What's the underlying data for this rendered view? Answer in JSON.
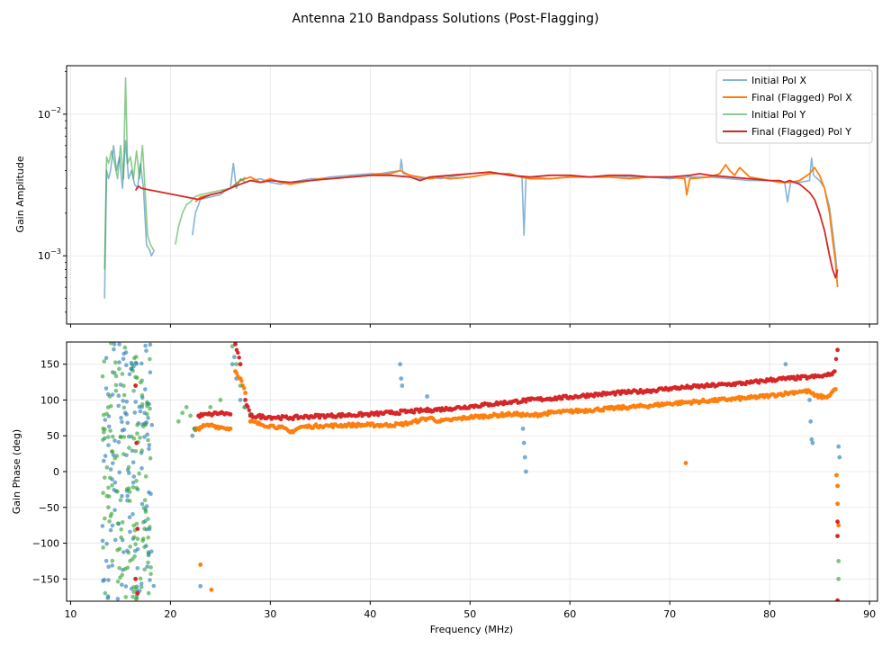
{
  "chart_data": {
    "type": "line",
    "title": "Antenna 210 Bandpass Solutions (Post-Flagging)",
    "xlabel": "Frequency (MHz)",
    "xlim": [
      9.6,
      90.8
    ],
    "x_ticks": [
      10,
      20,
      30,
      40,
      50,
      60,
      70,
      80,
      90
    ],
    "colors": {
      "initial_x": "#1f77b4",
      "final_x": "#ff7f0e",
      "initial_y": "#2ca02c",
      "final_y": "#d62728"
    },
    "amplitude": {
      "ylabel": "Gain Amplitude",
      "scale": "log",
      "ylim": [
        0.00033,
        0.022
      ],
      "y_ticks": [
        {
          "value": 0.001,
          "base": "10",
          "exp": "−3"
        },
        {
          "value": 0.01,
          "base": "10",
          "exp": "−2"
        }
      ],
      "legend": {
        "placement": "top-right",
        "entries": [
          "Initial Pol X",
          "Final (Flagged) Pol X",
          "Initial Pol Y",
          "Final (Flagged) Pol Y"
        ]
      },
      "series": [
        {
          "name": "Initial Pol X",
          "color_key": "initial_x",
          "x": [
            13.4,
            13.6,
            13.8,
            14.0,
            14.3,
            14.6,
            14.9,
            15.2,
            15.5,
            15.8,
            16.1,
            16.4,
            16.7,
            17.0,
            17.3,
            17.6,
            17.9,
            18.1,
            18.4,
            null,
            22.2,
            22.5,
            23,
            24,
            25,
            25.5,
            26,
            26.3,
            26.6,
            27,
            27.5,
            28,
            29,
            30,
            31,
            32,
            33,
            34,
            35,
            36,
            38,
            40,
            41,
            42,
            43,
            43.1,
            43.3,
            44,
            45,
            46,
            47,
            48,
            50,
            52,
            54,
            55.2,
            55.4,
            55.6,
            56,
            58,
            60,
            62,
            64,
            66,
            68,
            70,
            72,
            74,
            76,
            78,
            80,
            81,
            81.5,
            81.8,
            82.1,
            83,
            84,
            84.2,
            84.4,
            85,
            85.5,
            86,
            86.3,
            86.6,
            86.8
          ],
          "y": [
            0.0005,
            0.004,
            0.0035,
            0.004,
            0.006,
            0.004,
            0.005,
            0.003,
            0.0065,
            0.0035,
            0.004,
            0.0032,
            0.003,
            0.0045,
            0.003,
            0.0012,
            0.0011,
            0.001,
            0.0011,
            null,
            0.0014,
            0.002,
            0.0025,
            0.0026,
            0.0027,
            0.0029,
            0.003,
            0.0045,
            0.003,
            0.0035,
            0.0033,
            0.0034,
            0.0035,
            0.0033,
            0.0032,
            0.0033,
            0.0034,
            0.0035,
            0.0035,
            0.0036,
            0.0037,
            0.0038,
            0.0038,
            0.0039,
            0.004,
            0.0048,
            0.0038,
            0.0037,
            0.0035,
            0.0036,
            0.0035,
            0.0036,
            0.0038,
            0.0039,
            0.0037,
            0.0036,
            0.0014,
            0.0035,
            0.0036,
            0.0035,
            0.0036,
            0.0036,
            0.0037,
            0.0036,
            0.0036,
            0.0035,
            0.0036,
            0.0036,
            0.0035,
            0.0034,
            0.0034,
            0.0033,
            0.0033,
            0.0024,
            0.0033,
            0.0033,
            0.0034,
            0.0049,
            0.0037,
            0.0034,
            0.003,
            0.0022,
            0.0015,
            0.001,
            0.0007
          ]
        },
        {
          "name": "Final (Flagged) Pol X",
          "color_key": "final_x",
          "x": [
            22.5,
            23,
            24,
            25,
            26,
            27,
            28,
            29,
            30,
            31,
            32,
            33,
            34,
            35,
            36,
            38,
            40,
            41,
            42,
            43,
            44,
            45,
            46,
            47,
            48,
            50,
            52,
            54,
            55,
            56,
            58,
            60,
            62,
            64,
            66,
            68,
            70,
            71.5,
            71.7,
            72,
            74,
            75,
            75.6,
            76,
            76.5,
            77,
            78,
            79,
            80,
            81,
            82,
            83,
            84,
            84.5,
            85,
            85.5,
            86,
            86.3,
            86.6,
            86.8
          ],
          "y": [
            0.0024,
            0.0026,
            0.0027,
            0.0028,
            0.003,
            0.0034,
            0.0036,
            0.0033,
            0.0035,
            0.0033,
            0.0032,
            0.0033,
            0.0034,
            0.0035,
            0.0035,
            0.0036,
            0.0037,
            0.0038,
            0.0038,
            0.004,
            0.0037,
            0.0036,
            0.0035,
            0.0036,
            0.0035,
            0.0036,
            0.0038,
            0.0038,
            0.0036,
            0.0035,
            0.0035,
            0.0036,
            0.0036,
            0.0036,
            0.0035,
            0.0036,
            0.0036,
            0.0035,
            0.0027,
            0.0035,
            0.0036,
            0.0038,
            0.0044,
            0.004,
            0.0037,
            0.0042,
            0.0036,
            0.0035,
            0.0034,
            0.0033,
            0.0033,
            0.0034,
            0.0038,
            0.0042,
            0.0037,
            0.003,
            0.002,
            0.0013,
            0.0009,
            0.0006
          ]
        },
        {
          "name": "Initial Pol Y",
          "color_key": "initial_y",
          "x": [
            13.4,
            13.6,
            13.8,
            14.1,
            14.4,
            14.7,
            15.0,
            15.3,
            15.5,
            15.7,
            16.0,
            16.3,
            16.6,
            16.9,
            17.2,
            17.4,
            17.7,
            18.0,
            18.3,
            null,
            20.5,
            20.8,
            21.2,
            21.6,
            22.0,
            22.4,
            23,
            24,
            25,
            26,
            27,
            27.5
          ],
          "y": [
            0.0008,
            0.005,
            0.0045,
            0.0055,
            0.0045,
            0.0035,
            0.006,
            0.0035,
            0.018,
            0.0045,
            0.005,
            0.0035,
            0.0055,
            0.0035,
            0.006,
            0.0035,
            0.0014,
            0.0012,
            0.0011,
            null,
            0.0012,
            0.0016,
            0.002,
            0.0023,
            0.0024,
            0.0026,
            0.0027,
            0.0028,
            0.0029,
            0.003,
            0.0034,
            0.0036
          ]
        },
        {
          "name": "Final (Flagged) Pol Y",
          "color_key": "final_y",
          "x": [
            16.5,
            16.8,
            17.1,
            22.8,
            24,
            25,
            26,
            27,
            28,
            29,
            30,
            32,
            34,
            36,
            38,
            40,
            42,
            44,
            45,
            45.5,
            46,
            48,
            50,
            52,
            54,
            56,
            58,
            60,
            62,
            64,
            66,
            68,
            70,
            72,
            73,
            74,
            76,
            78,
            80,
            81,
            81.5,
            82,
            82.5,
            83,
            83.5,
            84,
            84.5,
            85,
            85.5,
            86,
            86.3,
            86.6,
            86.8
          ],
          "y": [
            0.0029,
            0.0031,
            0.003,
            0.0025,
            0.0027,
            0.0028,
            0.003,
            0.0032,
            0.0034,
            0.0033,
            0.0034,
            0.0033,
            0.0034,
            0.0035,
            0.0036,
            0.0037,
            0.0037,
            0.0036,
            0.0034,
            0.0035,
            0.0036,
            0.0037,
            0.0038,
            0.0039,
            0.0037,
            0.0036,
            0.0037,
            0.0037,
            0.0036,
            0.0037,
            0.0037,
            0.0036,
            0.0036,
            0.0037,
            0.0038,
            0.0037,
            0.0036,
            0.0035,
            0.0034,
            0.0034,
            0.0033,
            0.0034,
            0.0033,
            0.0032,
            0.003,
            0.0028,
            0.0025,
            0.002,
            0.0015,
            0.001,
            0.0008,
            0.0007,
            0.0008
          ]
        }
      ]
    },
    "phase": {
      "ylabel": "Gain Phase (deg)",
      "ylim": [
        -181,
        181
      ],
      "y_ticks": [
        -150,
        -100,
        -50,
        0,
        50,
        100,
        150
      ],
      "scatter_low_band": {
        "x_range": [
          13.2,
          18.6
        ],
        "note": "wrapped phase noise across -180..180 for initial Pol X and Pol Y"
      },
      "series": [
        {
          "name": "Initial Pol X",
          "color_key": "initial_x",
          "x": [
            22.2,
            22.4,
            23,
            26.2,
            26.4,
            26.6,
            27,
            27.5,
            28,
            43,
            43.1,
            43.2,
            45.7,
            55.3,
            55.4,
            55.5,
            55.6,
            81.6,
            84,
            84.1,
            84.2,
            84.3,
            86.9,
            87
          ],
          "y": [
            50,
            60,
            -160,
            150,
            160,
            130,
            100,
            90,
            80,
            150,
            130,
            120,
            105,
            60,
            40,
            20,
            0,
            150,
            100,
            70,
            45,
            40,
            35,
            20
          ]
        },
        {
          "name": "Final (Flagged) Pol X",
          "color_key": "final_x",
          "x": [
            22.5,
            23,
            24,
            25,
            26,
            26.5,
            27,
            27.5,
            28,
            29,
            30,
            31,
            32,
            33,
            34,
            35,
            36,
            38,
            40,
            42,
            43,
            44,
            45,
            46,
            47,
            48,
            50,
            52,
            54,
            55,
            56,
            58,
            60,
            62,
            64,
            66,
            68,
            70,
            72,
            74,
            76,
            78,
            80,
            81,
            82,
            83,
            84,
            84.5,
            85,
            85.5,
            86,
            86.3,
            86.6
          ],
          "y": [
            58,
            62,
            65,
            62,
            60,
            140,
            130,
            110,
            70,
            66,
            64,
            62,
            55,
            62,
            63,
            64,
            64,
            65,
            65,
            65,
            66,
            68,
            72,
            75,
            70,
            72,
            76,
            78,
            80,
            80,
            78,
            82,
            84,
            86,
            88,
            90,
            92,
            95,
            97,
            99,
            101,
            103,
            106,
            108,
            110,
            112,
            112,
            106,
            105,
            104,
            106,
            112,
            115
          ],
          "x_extra": [
            23,
            24.1,
            71.6,
            86.7,
            86.8,
            86.8,
            86.9
          ],
          "y_extra": [
            -130,
            -165,
            12,
            -5,
            -20,
            -45,
            -75
          ]
        },
        {
          "name": "Initial Pol Y",
          "color_key": "initial_y",
          "x": [
            20.8,
            21.2,
            21.6,
            22,
            22.4,
            24,
            25,
            26.2,
            26.6,
            27,
            27.4,
            28,
            86.9,
            86.9
          ],
          "y": [
            70,
            82,
            90,
            78,
            60,
            90,
            100,
            175,
            150,
            120,
            90,
            80,
            -125,
            -150
          ]
        },
        {
          "name": "Final (Flagged) Pol Y",
          "color_key": "final_y",
          "x": [
            16.5,
            16.6,
            16.7,
            22.8,
            24,
            25,
            26,
            26.5,
            27,
            27.5,
            28,
            30,
            32,
            34,
            36,
            38,
            40,
            42,
            44,
            46,
            48,
            50,
            52,
            54,
            56,
            58,
            60,
            62,
            64,
            66,
            68,
            70,
            72,
            74,
            76,
            78,
            80,
            82,
            84,
            85,
            86,
            86.5,
            86.8
          ],
          "y": [
            120,
            40,
            -80,
            78,
            80,
            82,
            80,
            178,
            150,
            100,
            78,
            76,
            75,
            77,
            78,
            79,
            80,
            82,
            84,
            86,
            88,
            91,
            94,
            97,
            100,
            102,
            104,
            107,
            109,
            111,
            113,
            116,
            118,
            120,
            122,
            124,
            128,
            130,
            132,
            133,
            135,
            140,
            170
          ],
          "x_extra": [
            16.5,
            16.7,
            86.8,
            86.8,
            86.8
          ],
          "y_extra": [
            -150,
            -170,
            -70,
            -90,
            -180
          ]
        }
      ]
    }
  }
}
